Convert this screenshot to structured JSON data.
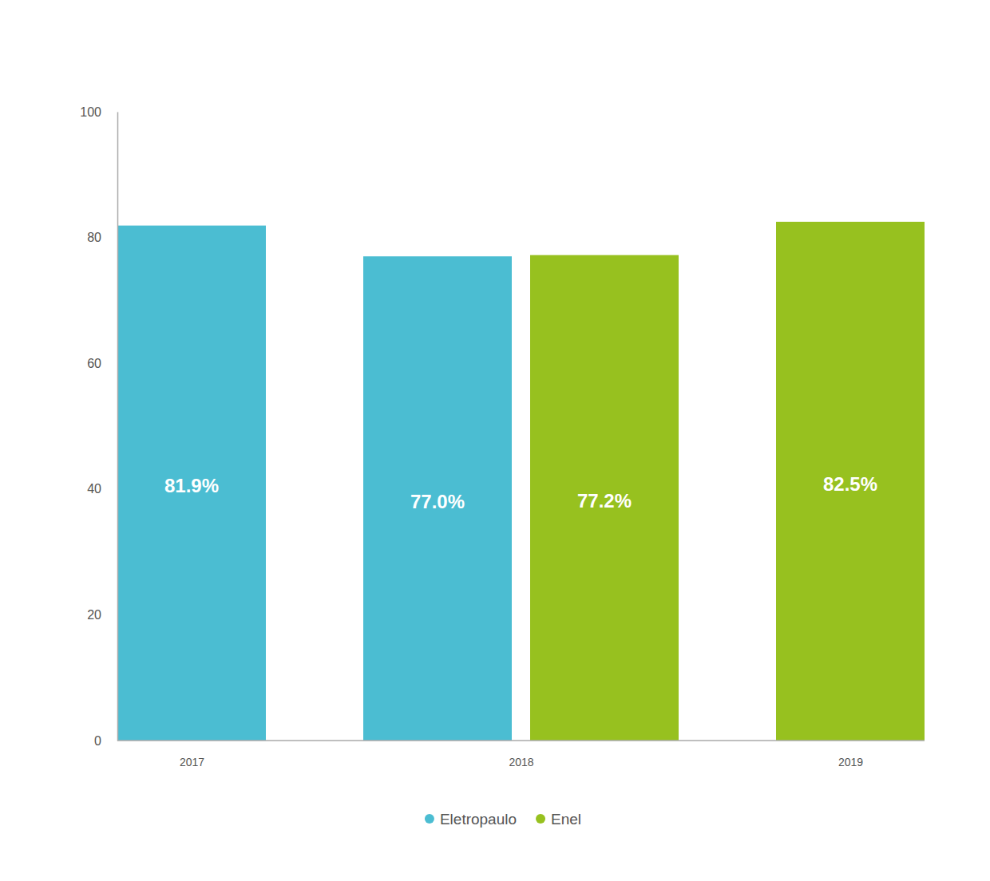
{
  "chart_data": {
    "type": "bar",
    "categories": [
      "2017",
      "2018",
      "2019"
    ],
    "series": [
      {
        "name": "Eletropaulo",
        "color": "#4bbdd2",
        "values": [
          81.9,
          77.0,
          null
        ],
        "value_labels": [
          "81.9%",
          "77.0%",
          null
        ]
      },
      {
        "name": "Enel",
        "color": "#97c11f",
        "values": [
          null,
          77.2,
          82.5
        ],
        "value_labels": [
          null,
          "77.2%",
          "82.5%"
        ]
      }
    ],
    "ylim": [
      0,
      100
    ],
    "yticks": [
      0,
      20,
      40,
      60,
      80,
      100
    ],
    "data_labels": true,
    "legend": "bottom",
    "grid": false
  }
}
